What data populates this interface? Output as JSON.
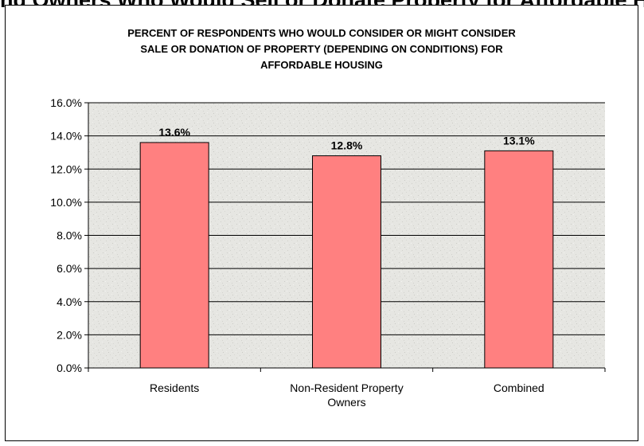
{
  "page": {
    "clipped_heading": "ng Owners Who Would Sell or Donate Property for Affordable Housing"
  },
  "chart_data": {
    "type": "bar",
    "title_lines": [
      "PERCENT OF RESPONDENTS WHO WOULD CONSIDER OR MIGHT CONSIDER",
      "SALE OR DONATION OF PROPERTY (DEPENDING ON CONDITIONS) FOR",
      "AFFORDABLE HOUSING"
    ],
    "categories": [
      [
        "Residents"
      ],
      [
        "Non-Resident Property",
        "Owners"
      ],
      [
        "Combined"
      ]
    ],
    "values": [
      13.6,
      12.8,
      13.1
    ],
    "value_labels": [
      "13.6%",
      "12.8%",
      "13.1%"
    ],
    "ylim": [
      0,
      16
    ],
    "yticks": [
      0,
      2,
      4,
      6,
      8,
      10,
      12,
      14,
      16
    ],
    "ytick_labels": [
      "0.0%",
      "2.0%",
      "4.0%",
      "6.0%",
      "8.0%",
      "10.0%",
      "12.0%",
      "14.0%",
      "16.0%"
    ],
    "grid": true,
    "legend": "none",
    "colors": {
      "bar_fill": "#ff8080",
      "bar_stroke": "#000000",
      "plot_background": "#e6e6e2",
      "gridline": "#000000"
    }
  }
}
